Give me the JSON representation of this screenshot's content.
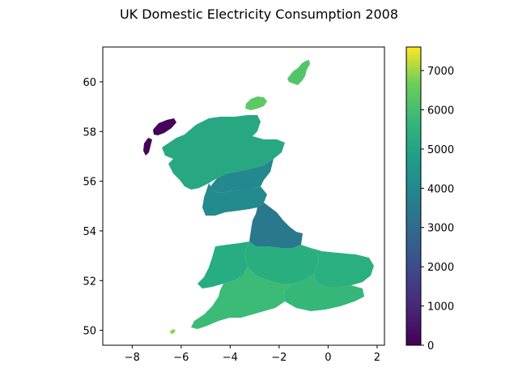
{
  "title": "UK Domestic Electricity Consumption 2008",
  "chart_data": {
    "type": "map",
    "title": "UK Domestic Electricity Consumption 2008",
    "xlabel": "",
    "ylabel": "",
    "xlim": [
      -9.2,
      2.3
    ],
    "ylim": [
      49.4,
      61.4
    ],
    "xticks": [
      -8,
      -6,
      -4,
      -2,
      0,
      2
    ],
    "xtick_labels": [
      "−8",
      "−6",
      "−4",
      "−2",
      "0",
      "2"
    ],
    "yticks": [
      50,
      52,
      54,
      56,
      58,
      60
    ],
    "ytick_labels": [
      "50",
      "52",
      "54",
      "56",
      "58",
      "60"
    ],
    "colorbar": {
      "colormap": "viridis",
      "min": 0,
      "max": 7600,
      "ticks": [
        0,
        1000,
        2000,
        3000,
        4000,
        5000,
        6000,
        7000
      ],
      "tick_labels": [
        "0",
        "1000",
        "2000",
        "3000",
        "4000",
        "5000",
        "6000",
        "7000"
      ]
    },
    "regions": [
      {
        "region": "Shetland",
        "value": 5600
      },
      {
        "region": "Orkney",
        "value": 5800
      },
      {
        "region": "Outer Hebrides",
        "value": 200
      },
      {
        "region": "Highlands",
        "value": 4300
      },
      {
        "region": "Central Scotland",
        "value": 3800
      },
      {
        "region": "Southern Scotland",
        "value": 3700
      },
      {
        "region": "North England",
        "value": 3500
      },
      {
        "region": "Midlands",
        "value": 4000
      },
      {
        "region": "Wales",
        "value": 4100
      },
      {
        "region": "East Anglia",
        "value": 4100
      },
      {
        "region": "London and South East",
        "value": 4500
      },
      {
        "region": "South West",
        "value": 4700
      },
      {
        "region": "Isles of Scilly",
        "value": 6400
      }
    ],
    "grid": false,
    "legend": "colorbar-right"
  }
}
